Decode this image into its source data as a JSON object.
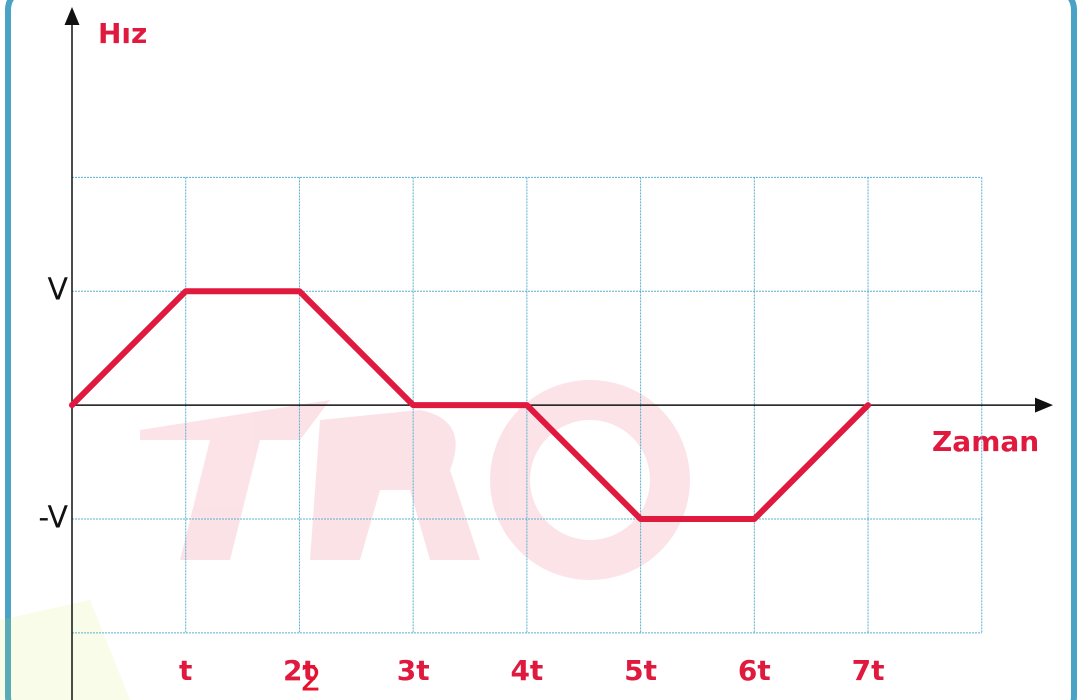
{
  "chart_data": {
    "type": "line",
    "y_label": "Hız",
    "x_label": "Zaman",
    "x": [
      0,
      1,
      2,
      3,
      4,
      5,
      6,
      7
    ],
    "values": [
      0,
      1,
      1,
      0,
      0,
      -1,
      -1,
      0
    ],
    "color": "#e0193f",
    "xlim": [
      0,
      8.6
    ],
    "ylim": [
      -2.59,
      3.47
    ],
    "xticks": [
      {
        "value": 1,
        "label": "t"
      },
      {
        "value": 2,
        "label": "2t"
      },
      {
        "value": 3,
        "label": "3t"
      },
      {
        "value": 4,
        "label": "4t"
      },
      {
        "value": 5,
        "label": "5t"
      },
      {
        "value": 6,
        "label": "6t"
      },
      {
        "value": 7,
        "label": "7t"
      }
    ],
    "yticks": [
      {
        "value": 1,
        "label": "V"
      },
      {
        "value": -1,
        "label": "-V"
      }
    ],
    "grid_x": [
      1,
      2,
      3,
      4,
      5,
      6,
      7,
      8
    ],
    "grid_y": [
      -2,
      -1,
      1,
      2
    ],
    "annotation": "2"
  }
}
